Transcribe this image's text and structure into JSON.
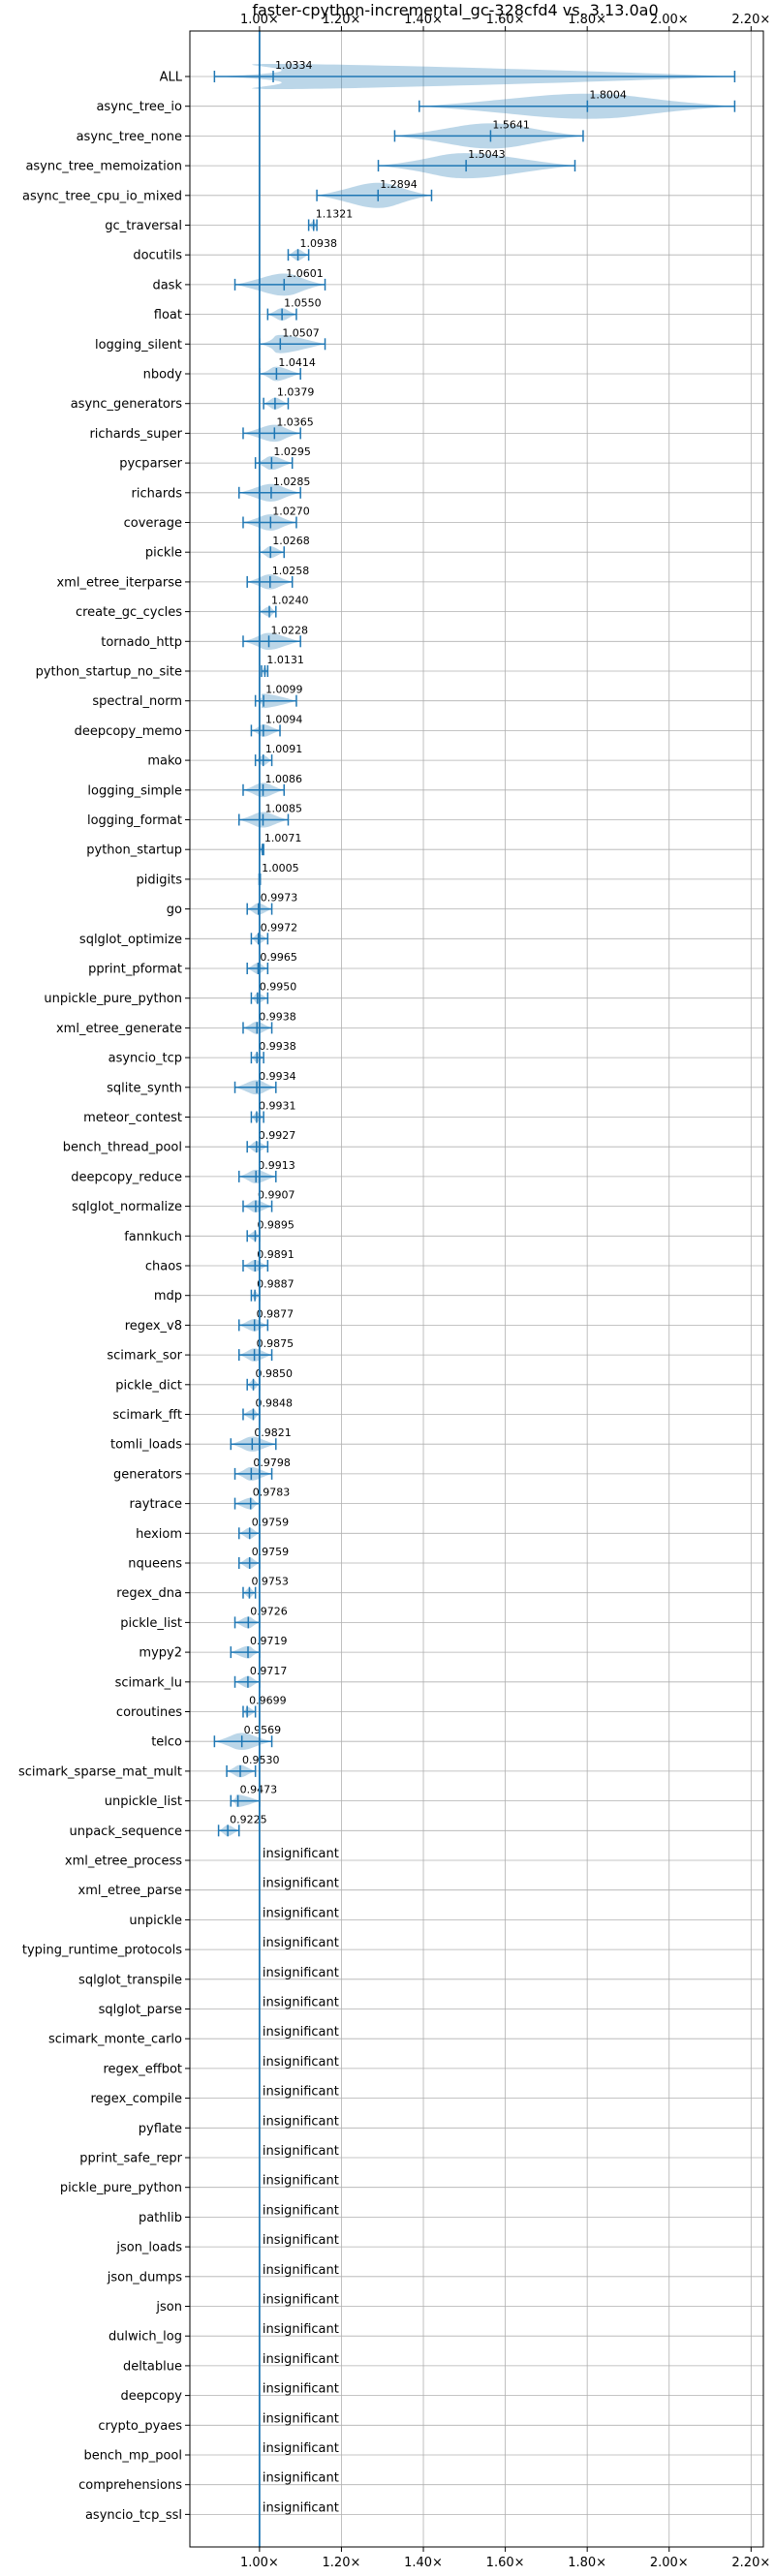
{
  "chart_data": {
    "type": "violin",
    "title": "faster-cpython-incremental_gc-328cfd4 vs. 3.13.0a0",
    "xlim": [
      0.83,
      2.23
    ],
    "xticks": [
      1.0,
      1.2,
      1.4,
      1.6,
      1.8,
      2.0,
      2.2
    ],
    "xtick_labels": [
      "1.00×",
      "1.20×",
      "1.40×",
      "1.60×",
      "1.80×",
      "2.00×",
      "2.20×"
    ],
    "ticks_top_and_bottom": true,
    "grid": true,
    "reference_line": 1.0,
    "insignificant_label": "insignificant",
    "rows": [
      {
        "name": "ALL",
        "value": 1.0334,
        "label": "1.0334",
        "min": 0.89,
        "max": 2.16
      },
      {
        "name": "async_tree_io",
        "value": 1.8004,
        "label": "1.8004",
        "min": 1.39,
        "max": 2.16
      },
      {
        "name": "async_tree_none",
        "value": 1.5641,
        "label": "1.5641",
        "min": 1.33,
        "max": 1.79
      },
      {
        "name": "async_tree_memoization",
        "value": 1.5043,
        "label": "1.5043",
        "min": 1.29,
        "max": 1.77
      },
      {
        "name": "async_tree_cpu_io_mixed",
        "value": 1.2894,
        "label": "1.2894",
        "min": 1.14,
        "max": 1.42
      },
      {
        "name": "gc_traversal",
        "value": 1.1321,
        "label": "1.1321",
        "min": 1.12,
        "max": 1.14
      },
      {
        "name": "docutils",
        "value": 1.0938,
        "label": "1.0938",
        "min": 1.07,
        "max": 1.12
      },
      {
        "name": "dask",
        "value": 1.0601,
        "label": "1.0601",
        "min": 0.94,
        "max": 1.16
      },
      {
        "name": "float",
        "value": 1.055,
        "label": "1.0550",
        "min": 1.02,
        "max": 1.09
      },
      {
        "name": "logging_silent",
        "value": 1.0507,
        "label": "1.0507",
        "min": 1.0,
        "max": 1.16
      },
      {
        "name": "nbody",
        "value": 1.0414,
        "label": "1.0414",
        "min": 1.0,
        "max": 1.1
      },
      {
        "name": "async_generators",
        "value": 1.0379,
        "label": "1.0379",
        "min": 1.01,
        "max": 1.07
      },
      {
        "name": "richards_super",
        "value": 1.0365,
        "label": "1.0365",
        "min": 0.96,
        "max": 1.1
      },
      {
        "name": "pycparser",
        "value": 1.0295,
        "label": "1.0295",
        "min": 0.99,
        "max": 1.08
      },
      {
        "name": "richards",
        "value": 1.0285,
        "label": "1.0285",
        "min": 0.95,
        "max": 1.1
      },
      {
        "name": "coverage",
        "value": 1.027,
        "label": "1.0270",
        "min": 0.96,
        "max": 1.09
      },
      {
        "name": "pickle",
        "value": 1.0268,
        "label": "1.0268",
        "min": 1.0,
        "max": 1.06
      },
      {
        "name": "xml_etree_iterparse",
        "value": 1.0258,
        "label": "1.0258",
        "min": 0.97,
        "max": 1.08
      },
      {
        "name": "create_gc_cycles",
        "value": 1.024,
        "label": "1.0240",
        "min": 1.0,
        "max": 1.04
      },
      {
        "name": "tornado_http",
        "value": 1.0228,
        "label": "1.0228",
        "min": 0.96,
        "max": 1.1
      },
      {
        "name": "python_startup_no_site",
        "value": 1.0131,
        "label": "1.0131",
        "min": 1.005,
        "max": 1.02
      },
      {
        "name": "spectral_norm",
        "value": 1.0099,
        "label": "1.0099",
        "min": 0.99,
        "max": 1.09
      },
      {
        "name": "deepcopy_memo",
        "value": 1.0094,
        "label": "1.0094",
        "min": 0.98,
        "max": 1.05
      },
      {
        "name": "mako",
        "value": 1.0091,
        "label": "1.0091",
        "min": 0.99,
        "max": 1.03
      },
      {
        "name": "logging_simple",
        "value": 1.0086,
        "label": "1.0086",
        "min": 0.96,
        "max": 1.06
      },
      {
        "name": "logging_format",
        "value": 1.0085,
        "label": "1.0085",
        "min": 0.95,
        "max": 1.07
      },
      {
        "name": "python_startup",
        "value": 1.0071,
        "label": "1.0071",
        "min": 1.0,
        "max": 1.01
      },
      {
        "name": "pidigits",
        "value": 1.0005,
        "label": "1.0005",
        "min": 0.999,
        "max": 1.002
      },
      {
        "name": "go",
        "value": 0.9973,
        "label": "0.9973",
        "min": 0.97,
        "max": 1.03
      },
      {
        "name": "sqlglot_optimize",
        "value": 0.9972,
        "label": "0.9972",
        "min": 0.98,
        "max": 1.02
      },
      {
        "name": "pprint_pformat",
        "value": 0.9965,
        "label": "0.9965",
        "min": 0.97,
        "max": 1.02
      },
      {
        "name": "unpickle_pure_python",
        "value": 0.995,
        "label": "0.9950",
        "min": 0.98,
        "max": 1.02
      },
      {
        "name": "xml_etree_generate",
        "value": 0.9938,
        "label": "0.9938",
        "min": 0.96,
        "max": 1.03
      },
      {
        "name": "asyncio_tcp",
        "value": 0.9938,
        "label": "0.9938",
        "min": 0.98,
        "max": 1.01
      },
      {
        "name": "sqlite_synth",
        "value": 0.9934,
        "label": "0.9934",
        "min": 0.94,
        "max": 1.04
      },
      {
        "name": "meteor_contest",
        "value": 0.9931,
        "label": "0.9931",
        "min": 0.98,
        "max": 1.01
      },
      {
        "name": "bench_thread_pool",
        "value": 0.9927,
        "label": "0.9927",
        "min": 0.97,
        "max": 1.02
      },
      {
        "name": "deepcopy_reduce",
        "value": 0.9913,
        "label": "0.9913",
        "min": 0.95,
        "max": 1.04
      },
      {
        "name": "sqlglot_normalize",
        "value": 0.9907,
        "label": "0.9907",
        "min": 0.96,
        "max": 1.03
      },
      {
        "name": "fannkuch",
        "value": 0.9895,
        "label": "0.9895",
        "min": 0.97,
        "max": 1.0
      },
      {
        "name": "chaos",
        "value": 0.9891,
        "label": "0.9891",
        "min": 0.96,
        "max": 1.02
      },
      {
        "name": "mdp",
        "value": 0.9887,
        "label": "0.9887",
        "min": 0.98,
        "max": 1.0
      },
      {
        "name": "regex_v8",
        "value": 0.9877,
        "label": "0.9877",
        "min": 0.95,
        "max": 1.02
      },
      {
        "name": "scimark_sor",
        "value": 0.9875,
        "label": "0.9875",
        "min": 0.95,
        "max": 1.03
      },
      {
        "name": "pickle_dict",
        "value": 0.985,
        "label": "0.9850",
        "min": 0.97,
        "max": 1.0
      },
      {
        "name": "scimark_fft",
        "value": 0.9848,
        "label": "0.9848",
        "min": 0.96,
        "max": 1.0
      },
      {
        "name": "tomli_loads",
        "value": 0.9821,
        "label": "0.9821",
        "min": 0.93,
        "max": 1.04
      },
      {
        "name": "generators",
        "value": 0.9798,
        "label": "0.9798",
        "min": 0.94,
        "max": 1.03
      },
      {
        "name": "raytrace",
        "value": 0.9783,
        "label": "0.9783",
        "min": 0.94,
        "max": 1.0
      },
      {
        "name": "hexiom",
        "value": 0.9759,
        "label": "0.9759",
        "min": 0.95,
        "max": 1.0
      },
      {
        "name": "nqueens",
        "value": 0.9759,
        "label": "0.9759",
        "min": 0.95,
        "max": 1.0
      },
      {
        "name": "regex_dna",
        "value": 0.9753,
        "label": "0.9753",
        "min": 0.96,
        "max": 0.99
      },
      {
        "name": "pickle_list",
        "value": 0.9726,
        "label": "0.9726",
        "min": 0.94,
        "max": 1.0
      },
      {
        "name": "mypy2",
        "value": 0.9719,
        "label": "0.9719",
        "min": 0.93,
        "max": 1.0
      },
      {
        "name": "scimark_lu",
        "value": 0.9717,
        "label": "0.9717",
        "min": 0.94,
        "max": 1.0
      },
      {
        "name": "coroutines",
        "value": 0.9699,
        "label": "0.9699",
        "min": 0.96,
        "max": 0.99
      },
      {
        "name": "telco",
        "value": 0.9569,
        "label": "0.9569",
        "min": 0.89,
        "max": 1.03
      },
      {
        "name": "scimark_sparse_mat_mult",
        "value": 0.953,
        "label": "0.9530",
        "min": 0.92,
        "max": 0.99
      },
      {
        "name": "unpickle_list",
        "value": 0.9473,
        "label": "0.9473",
        "min": 0.93,
        "max": 1.0
      },
      {
        "name": "unpack_sequence",
        "value": 0.9225,
        "label": "0.9225",
        "min": 0.9,
        "max": 0.95
      },
      {
        "name": "xml_etree_process",
        "insignificant": true
      },
      {
        "name": "xml_etree_parse",
        "insignificant": true
      },
      {
        "name": "unpickle",
        "insignificant": true
      },
      {
        "name": "typing_runtime_protocols",
        "insignificant": true
      },
      {
        "name": "sqlglot_transpile",
        "insignificant": true
      },
      {
        "name": "sqlglot_parse",
        "insignificant": true
      },
      {
        "name": "scimark_monte_carlo",
        "insignificant": true
      },
      {
        "name": "regex_effbot",
        "insignificant": true
      },
      {
        "name": "regex_compile",
        "insignificant": true
      },
      {
        "name": "pyflate",
        "insignificant": true
      },
      {
        "name": "pprint_safe_repr",
        "insignificant": true
      },
      {
        "name": "pickle_pure_python",
        "insignificant": true
      },
      {
        "name": "pathlib",
        "insignificant": true
      },
      {
        "name": "json_loads",
        "insignificant": true
      },
      {
        "name": "json_dumps",
        "insignificant": true
      },
      {
        "name": "json",
        "insignificant": true
      },
      {
        "name": "dulwich_log",
        "insignificant": true
      },
      {
        "name": "deltablue",
        "insignificant": true
      },
      {
        "name": "deepcopy",
        "insignificant": true
      },
      {
        "name": "crypto_pyaes",
        "insignificant": true
      },
      {
        "name": "bench_mp_pool",
        "insignificant": true
      },
      {
        "name": "comprehensions",
        "insignificant": true
      },
      {
        "name": "asyncio_tcp_ssl",
        "insignificant": true
      }
    ],
    "colors": {
      "accent": "#1f77b4",
      "violin_fill": "#1f77b4",
      "grid": "#b0b0b0",
      "text": "#000000"
    }
  }
}
